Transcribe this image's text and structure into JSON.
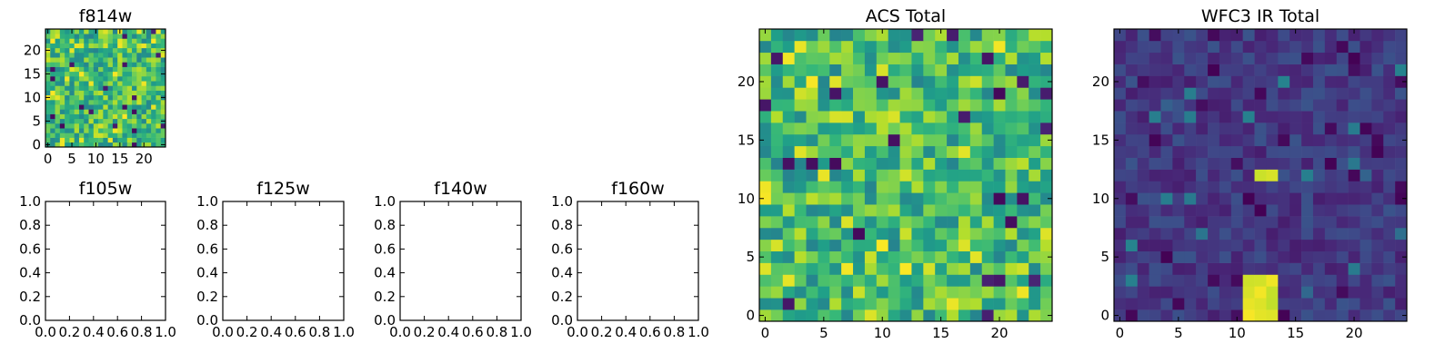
{
  "chart_data": [
    {
      "type": "heatmap",
      "title": "f814w",
      "seed": 11,
      "colormap": "viridis",
      "xlim": [
        -0.5,
        24.5
      ],
      "ylim": [
        -0.5,
        24.5
      ],
      "xticks": [
        0,
        5,
        10,
        15,
        20
      ],
      "yticks": [
        0,
        5,
        10,
        15,
        20
      ],
      "xticklabels": [
        "0",
        "5",
        "10",
        "15",
        "20"
      ],
      "yticklabels": [
        "0",
        "5",
        "10",
        "15",
        "20"
      ],
      "pixels": "25x25"
    },
    {
      "type": "table",
      "title": "f105w",
      "empty": true,
      "xlim": [
        0,
        1
      ],
      "ylim": [
        0,
        1
      ],
      "xticks": [
        0,
        0.2,
        0.4,
        0.6,
        0.8,
        1.0
      ],
      "yticks": [
        0,
        0.2,
        0.4,
        0.6,
        0.8,
        1.0
      ],
      "xticklabels": [
        "0.0",
        "0.2",
        "0.4",
        "0.6",
        "0.8",
        "1.0"
      ],
      "yticklabels": [
        "0.0",
        "0.2",
        "0.4",
        "0.6",
        "0.8",
        "1.0"
      ]
    },
    {
      "type": "table",
      "title": "f125w",
      "empty": true,
      "xlim": [
        0,
        1
      ],
      "ylim": [
        0,
        1
      ],
      "xticks": [
        0,
        0.2,
        0.4,
        0.6,
        0.8,
        1.0
      ],
      "yticks": [
        0,
        0.2,
        0.4,
        0.6,
        0.8,
        1.0
      ],
      "xticklabels": [
        "0.0",
        "0.2",
        "0.4",
        "0.6",
        "0.8",
        "1.0"
      ],
      "yticklabels": [
        "0.0",
        "0.2",
        "0.4",
        "0.6",
        "0.8",
        "1.0"
      ]
    },
    {
      "type": "table",
      "title": "f140w",
      "empty": true,
      "xlim": [
        0,
        1
      ],
      "ylim": [
        0,
        1
      ],
      "xticks": [
        0,
        0.2,
        0.4,
        0.6,
        0.8,
        1.0
      ],
      "yticks": [
        0,
        0.2,
        0.4,
        0.6,
        0.8,
        1.0
      ],
      "xticklabels": [
        "0.0",
        "0.2",
        "0.4",
        "0.6",
        "0.8",
        "1.0"
      ],
      "yticklabels": [
        "0.0",
        "0.2",
        "0.4",
        "0.6",
        "0.8",
        "1.0"
      ]
    },
    {
      "type": "table",
      "title": "f160w",
      "empty": true,
      "xlim": [
        0,
        1
      ],
      "ylim": [
        0,
        1
      ],
      "xticks": [
        0,
        0.2,
        0.4,
        0.6,
        0.8,
        1.0
      ],
      "yticks": [
        0,
        0.2,
        0.4,
        0.6,
        0.8,
        1.0
      ],
      "xticklabels": [
        "0.0",
        "0.2",
        "0.4",
        "0.6",
        "0.8",
        "1.0"
      ],
      "yticklabels": [
        "0.0",
        "0.2",
        "0.4",
        "0.6",
        "0.8",
        "1.0"
      ]
    },
    {
      "type": "heatmap",
      "title": "ACS Total",
      "seed": 29,
      "colormap": "viridis",
      "xlim": [
        -0.5,
        24.5
      ],
      "ylim": [
        -0.5,
        24.5
      ],
      "xticks": [
        0,
        5,
        10,
        15,
        20
      ],
      "yticks": [
        0,
        5,
        10,
        15,
        20
      ],
      "xticklabels": [
        "0",
        "5",
        "10",
        "15",
        "20"
      ],
      "yticklabels": [
        "0",
        "5",
        "10",
        "15",
        "20"
      ],
      "pixels": "25x25"
    },
    {
      "type": "heatmap",
      "title": "WFC3 IR Total",
      "seed": 47,
      "colormap": "viridis",
      "xlim": [
        -0.5,
        24.5
      ],
      "ylim": [
        -0.5,
        24.5
      ],
      "xticks": [
        0,
        5,
        10,
        15,
        20
      ],
      "yticks": [
        0,
        5,
        10,
        15,
        20
      ],
      "xticklabels": [
        "0",
        "5",
        "10",
        "15",
        "20"
      ],
      "yticklabels": [
        "0",
        "5",
        "10",
        "15",
        "20"
      ],
      "pixels": "25x25",
      "bright_regions": [
        {
          "x": [
            11,
            13
          ],
          "y": [
            0,
            3
          ]
        },
        {
          "x": [
            12,
            13
          ],
          "y": [
            12,
            12
          ]
        }
      ]
    }
  ]
}
